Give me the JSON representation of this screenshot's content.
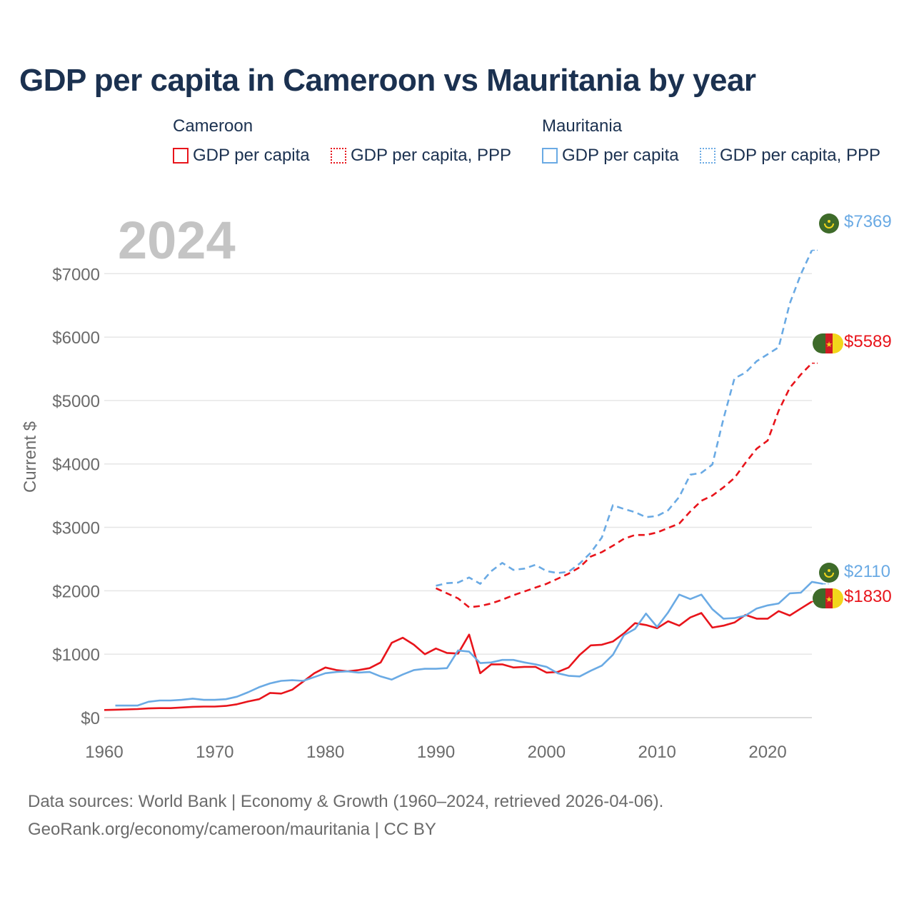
{
  "title": "GDP per capita in Cameroon vs Mauritania by year",
  "legend": {
    "groups": [
      {
        "country": "Cameroon",
        "items": [
          "GDP per capita",
          "GDP per capita, PPP"
        ],
        "color": "#e8141b"
      },
      {
        "country": "Mauritania",
        "items": [
          "GDP per capita",
          "GDP per capita, PPP"
        ],
        "color": "#6aaae4"
      }
    ]
  },
  "year_watermark": "2024",
  "end_labels": {
    "mauritania_ppp": "$7369",
    "cameroon_ppp": "$5589",
    "mauritania_gdp": "$2110",
    "cameroon_gdp": "$1830"
  },
  "footer": {
    "line1": "Data sources: World Bank | Economy & Growth (1960–2024, retrieved 2026-04-06).",
    "line2": "GeoRank.org/economy/cameroon/mauritania | CC BY"
  },
  "chart_data": {
    "type": "line",
    "title": "GDP per capita in Cameroon vs Mauritania by year",
    "xlabel": "",
    "ylabel": "Current $",
    "xlim": [
      1960,
      2024
    ],
    "ylim": [
      0,
      7600
    ],
    "x_ticks": [
      1960,
      1970,
      1980,
      1990,
      2000,
      2010,
      2020
    ],
    "x_tick_labels": [
      "1960",
      "1970",
      "1980",
      "1990",
      "2000",
      "2010",
      "2020"
    ],
    "y_ticks": [
      0,
      1000,
      2000,
      3000,
      4000,
      5000,
      6000,
      7000
    ],
    "y_tick_labels": [
      "$0",
      "$1000",
      "$2000",
      "$3000",
      "$4000",
      "$5000",
      "$6000",
      "$7000"
    ],
    "grid": true,
    "series": [
      {
        "name": "Cameroon GDP per capita",
        "color": "#e8141b",
        "dash": "solid",
        "x_start": 1960,
        "values": [
          120,
          125,
          130,
          135,
          145,
          150,
          150,
          160,
          170,
          175,
          175,
          185,
          210,
          255,
          290,
          390,
          380,
          440,
          570,
          700,
          790,
          750,
          730,
          750,
          780,
          870,
          1180,
          1260,
          1150,
          1000,
          1090,
          1020,
          1010,
          1310,
          700,
          840,
          840,
          790,
          800,
          800,
          710,
          720,
          790,
          990,
          1140,
          1150,
          1200,
          1330,
          1490,
          1460,
          1410,
          1520,
          1450,
          1580,
          1650,
          1420,
          1450,
          1500,
          1620,
          1560,
          1560,
          1680,
          1610,
          1720,
          1830
        ]
      },
      {
        "name": "Cameroon GDP per capita, PPP",
        "color": "#e8141b",
        "dash": "dashed",
        "x_start": 1990,
        "values": [
          2040,
          1960,
          1880,
          1740,
          1760,
          1800,
          1860,
          1930,
          1990,
          2050,
          2110,
          2190,
          2270,
          2370,
          2540,
          2610,
          2710,
          2820,
          2880,
          2880,
          2920,
          2990,
          3060,
          3250,
          3420,
          3500,
          3630,
          3780,
          4020,
          4240,
          4370,
          4840,
          5200,
          5410,
          5589
        ]
      },
      {
        "name": "Mauritania GDP per capita",
        "color": "#6aaae4",
        "dash": "solid",
        "x_start": 1961,
        "values": [
          190,
          190,
          190,
          250,
          270,
          270,
          280,
          300,
          280,
          280,
          290,
          330,
          400,
          480,
          540,
          580,
          590,
          580,
          640,
          700,
          720,
          730,
          710,
          720,
          650,
          600,
          680,
          750,
          770,
          770,
          780,
          1060,
          1040,
          860,
          870,
          910,
          910,
          870,
          840,
          800,
          700,
          660,
          650,
          740,
          820,
          990,
          1300,
          1400,
          1640,
          1430,
          1660,
          1940,
          1870,
          1940,
          1710,
          1560,
          1570,
          1610,
          1720,
          1770,
          1800,
          1960,
          1970,
          2140,
          2110
        ]
      },
      {
        "name": "Mauritania GDP per capita, PPP",
        "color": "#6aaae4",
        "dash": "dashed",
        "x_start": 1990,
        "values": [
          2080,
          2120,
          2130,
          2210,
          2110,
          2310,
          2440,
          2330,
          2350,
          2410,
          2310,
          2280,
          2300,
          2430,
          2600,
          2840,
          3350,
          3290,
          3240,
          3160,
          3180,
          3270,
          3480,
          3830,
          3860,
          3990,
          4710,
          5350,
          5440,
          5620,
          5730,
          5840,
          6530,
          6990,
          7369
        ]
      }
    ]
  }
}
